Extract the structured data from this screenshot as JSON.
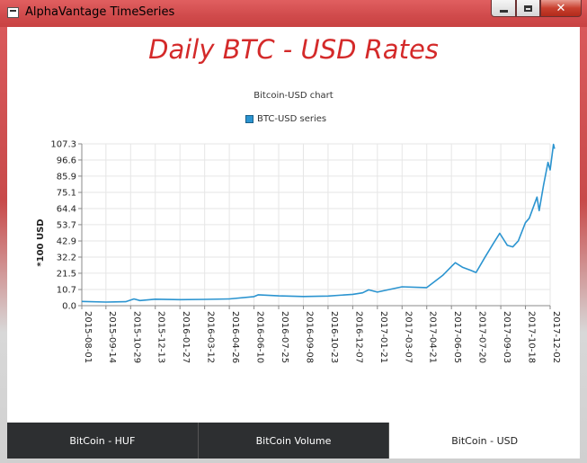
{
  "window": {
    "title": "AlphaVantage TimeSeries",
    "accent": "#d04a4b"
  },
  "headline": "Daily BTC - USD Rates",
  "tabs": [
    {
      "label": "BitCoin - HUF",
      "selected": false
    },
    {
      "label": "BitCoin Volume",
      "selected": false
    },
    {
      "label": "BitCoin - USD",
      "selected": true
    }
  ],
  "chart_data": {
    "type": "line",
    "title": "Bitcoin-USD chart",
    "xlabel": "",
    "ylabel": "*100 USD",
    "ylim": [
      0,
      107.3
    ],
    "yticks": [
      "0.0",
      "10.7",
      "21.5",
      "32.2",
      "42.9",
      "53.7",
      "64.4",
      "75.1",
      "85.9",
      "96.6",
      "107.3"
    ],
    "xticks": [
      "2015-08-01",
      "2015-09-14",
      "2015-10-29",
      "2015-12-13",
      "2016-01-27",
      "2016-03-12",
      "2016-04-26",
      "2016-06-10",
      "2016-07-25",
      "2016-09-08",
      "2016-10-23",
      "2016-12-07",
      "2017-01-21",
      "2017-03-07",
      "2017-04-21",
      "2017-06-05",
      "2017-07-20",
      "2017-09-03",
      "2017-10-18",
      "2017-12-02"
    ],
    "grid": true,
    "legend_position": "top-center",
    "series": [
      {
        "name": "BTC-USD series",
        "color": "#2b94d0",
        "x": [
          "2015-08-01",
          "2015-09-14",
          "2015-10-20",
          "2015-11-04",
          "2015-11-15",
          "2015-12-13",
          "2016-01-27",
          "2016-03-12",
          "2016-04-26",
          "2016-06-10",
          "2016-06-18",
          "2016-07-25",
          "2016-09-08",
          "2016-10-23",
          "2016-12-07",
          "2016-12-25",
          "2017-01-05",
          "2017-01-21",
          "2017-03-07",
          "2017-04-21",
          "2017-05-20",
          "2017-06-05",
          "2017-06-12",
          "2017-06-25",
          "2017-07-10",
          "2017-07-20",
          "2017-08-05",
          "2017-08-20",
          "2017-09-01",
          "2017-09-15",
          "2017-09-25",
          "2017-10-05",
          "2017-10-18",
          "2017-10-25",
          "2017-11-08",
          "2017-11-12",
          "2017-11-20",
          "2017-11-28",
          "2017-12-02",
          "2017-12-08",
          "2017-12-10"
        ],
        "values": [
          2.8,
          2.4,
          2.6,
          4.5,
          3.4,
          4.3,
          4.0,
          4.2,
          4.5,
          6.0,
          7.2,
          6.5,
          6.1,
          6.4,
          7.5,
          8.5,
          10.5,
          9.0,
          12.5,
          12.0,
          20.0,
          26.0,
          28.5,
          25.5,
          23.5,
          22.0,
          32.0,
          41.0,
          48.0,
          40.0,
          39.0,
          43.0,
          55.0,
          58.0,
          72.0,
          63.0,
          80.0,
          95.0,
          90.0,
          107.0,
          104.0
        ]
      }
    ]
  }
}
